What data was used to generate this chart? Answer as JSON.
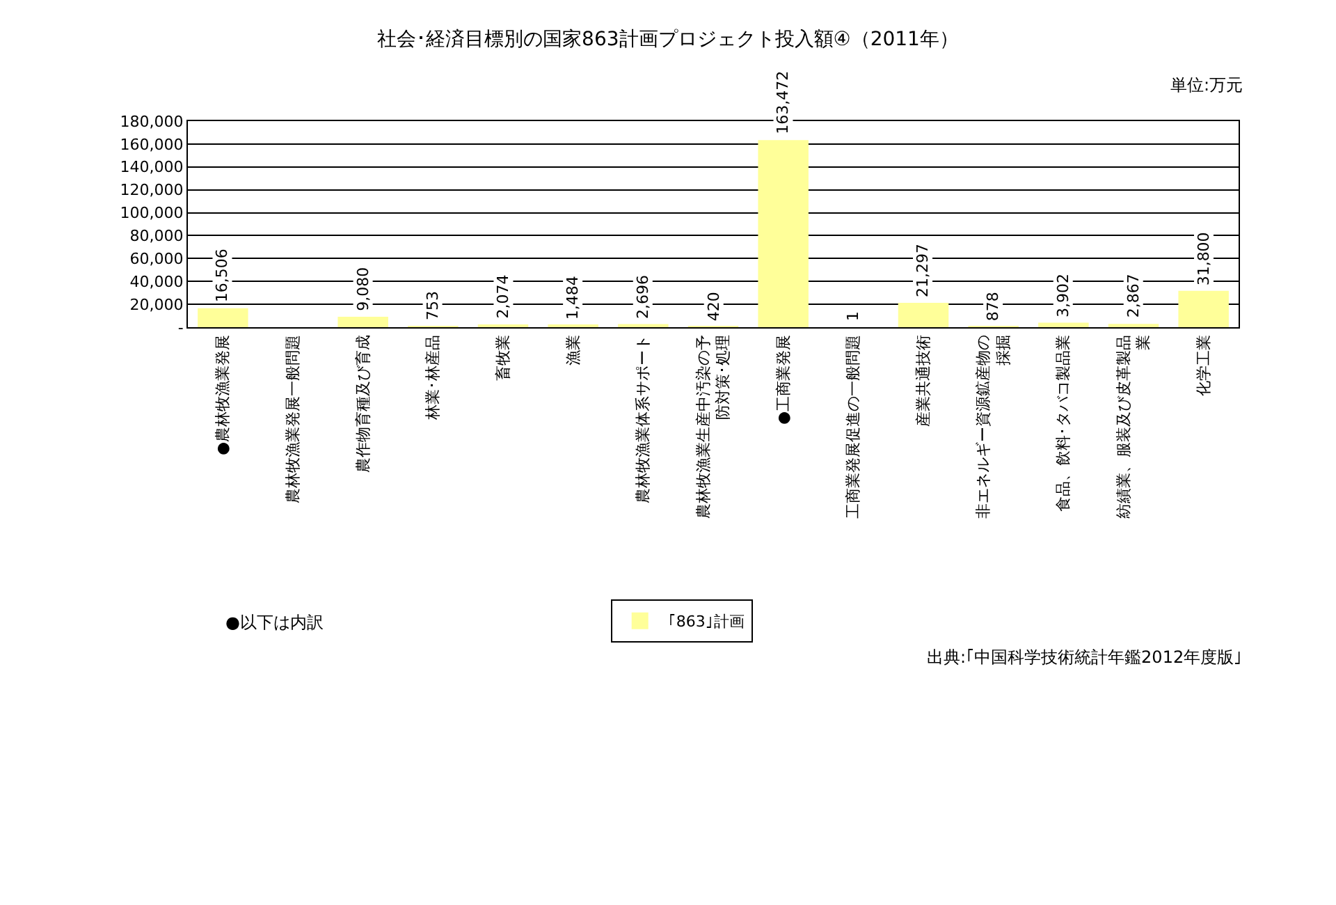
{
  "chart_data": {
    "type": "bar",
    "title": "社会･経済目標別の国家863計画プロジェクト投入額④（2011年）",
    "categories": [
      "●農林牧漁業発展",
      "農林牧漁業発展一般問題",
      "農作物育種及び育成",
      "林業･林産品",
      "畜牧業",
      "漁業",
      "農林牧漁業体系サポート",
      "農林牧漁業生産中汚染の予防対策･処理",
      "●工商業発展",
      "工商業発展促進の一般問題",
      "産業共通技術",
      "非エネルギー資源鉱産物の採掘",
      "食品、飲料･タバコ製品業",
      "紡績業、服装及び皮革製品業",
      "化学工業"
    ],
    "series": [
      {
        "name": "｢863｣計画",
        "color": "#ffff99",
        "values": [
          16506,
          null,
          9080,
          753,
          2074,
          1484,
          2696,
          420,
          163472,
          1,
          21297,
          878,
          3902,
          2867,
          31800
        ],
        "value_labels": [
          "16,506",
          null,
          "9,080",
          "753",
          "2,074",
          "1,484",
          "2,696",
          "420",
          "163,472",
          "1",
          "21,297",
          "878",
          "3,902",
          "2,867",
          "31,800"
        ]
      }
    ],
    "ylim": [
      0,
      180000
    ],
    "yticks": [
      {
        "value": 0,
        "label": "-"
      },
      {
        "value": 20000,
        "label": "20,000"
      },
      {
        "value": 40000,
        "label": "40,000"
      },
      {
        "value": 60000,
        "label": "60,000"
      },
      {
        "value": 80000,
        "label": "80,000"
      },
      {
        "value": 100000,
        "label": "100,000"
      },
      {
        "value": 120000,
        "label": "120,000"
      },
      {
        "value": 140000,
        "label": "140,000"
      },
      {
        "value": 160000,
        "label": "160,000"
      },
      {
        "value": 180000,
        "label": "180,000"
      }
    ],
    "grid": "y",
    "legend": "bottom",
    "annotations": [
      "単位:万元",
      "●以下は内訳",
      "出典:｢中国科学技術統計年鑑2012年度版｣"
    ]
  }
}
